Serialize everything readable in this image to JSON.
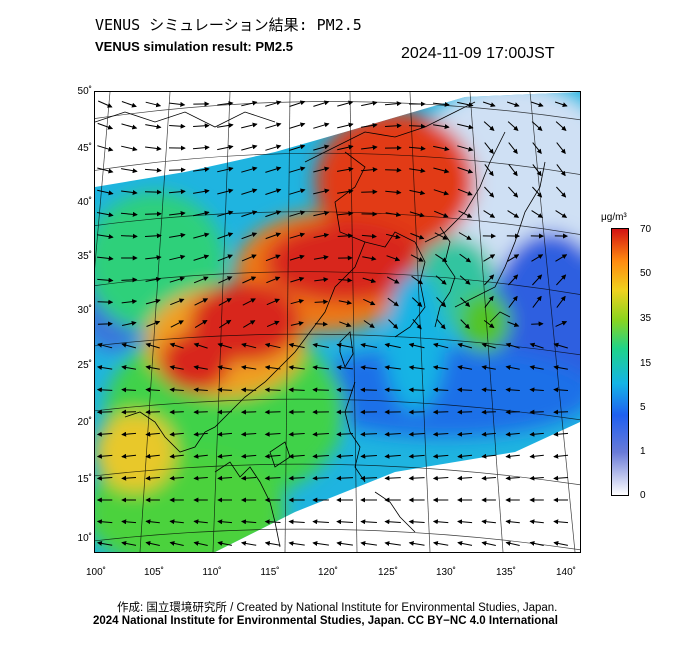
{
  "header": {
    "title_jp": "VENUS シミュレーション結果: PM2.5",
    "title_en": "VENUS simulation result: PM2.5",
    "timestamp": "2024-11-09 17:00JST"
  },
  "map": {
    "lat_labels": [
      "50˚",
      "45˚",
      "40˚",
      "35˚",
      "30˚",
      "25˚",
      "20˚",
      "15˚",
      "10˚"
    ],
    "lon_labels": [
      "100˚",
      "105˚",
      "110˚",
      "115˚",
      "120˚",
      "125˚",
      "130˚",
      "135˚",
      "140˚"
    ],
    "lat_range": [
      9,
      51
    ],
    "lon_range": [
      100,
      141
    ],
    "layers": [
      "PM2.5 concentration",
      "wind vectors",
      "coastlines",
      "graticule"
    ]
  },
  "colorbar": {
    "unit": "μg/m³",
    "ticks": [
      "70",
      "50",
      "35",
      "15",
      "5",
      "1",
      "0"
    ],
    "colors": {
      "0": "#ffffff",
      "1": "#6a7bd8",
      "5": "#14b4e6",
      "15": "#1fd38a",
      "35": "#f0d21e",
      "50": "#ff8a10",
      "70": "#d21212"
    }
  },
  "footer": {
    "credit_line_1": "作成: 国立環境研究所 / Created by National Institute for Environmental Studies, Japan.",
    "credit_line_2": "2024 National Institute for Environmental Studies, Japan. CC BY−NC 4.0 International"
  }
}
